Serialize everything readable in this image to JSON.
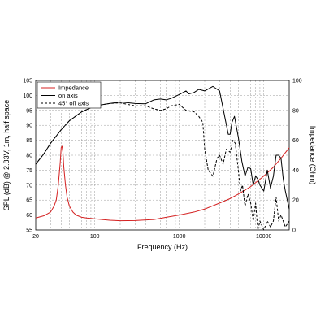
{
  "chart_data": {
    "type": "line",
    "xlabel": "Frequency (Hz)",
    "ylabel_left": "SPL (dB) @ 2.83V, 1m, half space",
    "ylabel_right": "Impedance (Ohm)",
    "x_scale": "log",
    "xlim": [
      20,
      20000
    ],
    "ylim_left": [
      55,
      105
    ],
    "ylim_right": [
      0,
      100
    ],
    "x_tick_labels": [
      "20",
      "100",
      "1000",
      "10000"
    ],
    "y_left_ticks": [
      "55",
      "60",
      "65",
      "70",
      "75",
      "80",
      "85",
      "90",
      "95",
      "100",
      "105"
    ],
    "y_right_ticks": [
      "0",
      "20",
      "40",
      "60",
      "80",
      "100"
    ],
    "grid": true,
    "legend_position": "top-left",
    "series": [
      {
        "name": "Impedance",
        "axis": "right",
        "color": "#d42020",
        "style": "solid",
        "x": [
          20,
          25,
          30,
          33,
          35,
          37,
          39,
          40,
          41,
          42,
          43,
          45,
          47,
          50,
          55,
          60,
          70,
          80,
          100,
          150,
          200,
          300,
          500,
          700,
          1000,
          1500,
          2000,
          3000,
          4000,
          5000,
          7000,
          10000,
          13000,
          16000,
          20000
        ],
        "values": [
          8,
          9.5,
          12,
          16,
          20,
          30,
          45,
          55,
          56,
          52,
          42,
          30,
          22,
          16,
          12,
          10,
          8.5,
          8,
          7.5,
          6.5,
          6.2,
          6.3,
          7,
          8.5,
          10,
          12,
          14,
          18,
          21,
          24,
          29,
          36,
          42,
          48,
          55
        ]
      },
      {
        "name": "on axis",
        "axis": "left",
        "color": "#000000",
        "style": "solid",
        "x": [
          20,
          25,
          30,
          40,
          50,
          70,
          100,
          150,
          200,
          300,
          400,
          500,
          600,
          700,
          800,
          1000,
          1200,
          1300,
          1500,
          1700,
          2000,
          2500,
          3000,
          3500,
          3800,
          4000,
          4200,
          4500,
          5000,
          5500,
          6000,
          6500,
          7000,
          7500,
          8000,
          8500,
          9000,
          10000,
          11000,
          12000,
          13000,
          14000,
          15000,
          16000,
          17000,
          18000,
          20000
        ],
        "values": [
          77,
          80.5,
          84,
          88.5,
          91.5,
          94.5,
          96.5,
          97.3,
          97.8,
          97.3,
          97.2,
          98.5,
          98.8,
          98.5,
          99,
          100.3,
          101.5,
          100.5,
          101,
          102,
          101.5,
          103,
          101.5,
          92,
          87,
          87,
          91,
          93,
          86,
          78,
          73,
          76,
          75.5,
          70,
          73,
          72,
          70,
          68,
          75,
          69,
          73,
          80,
          80,
          79,
          72,
          68,
          62
        ]
      },
      {
        "name": "45° off axis",
        "axis": "left",
        "color": "#000000",
        "style": "dashed",
        "x": [
          20,
          25,
          30,
          40,
          50,
          70,
          100,
          150,
          200,
          300,
          400,
          500,
          600,
          700,
          800,
          1000,
          1200,
          1500,
          1700,
          1900,
          2000,
          2200,
          2500,
          2800,
          3000,
          3300,
          3600,
          4000,
          4300,
          4600,
          5000,
          5300,
          5600,
          6000,
          6500,
          7000,
          7500,
          8000,
          8500,
          9000,
          10000,
          11000,
          12000,
          13000,
          14000,
          15000,
          16000,
          18000,
          20000
        ],
        "values": [
          77,
          80.5,
          84,
          88.5,
          91.5,
          94.5,
          96.5,
          97.3,
          97.5,
          96.5,
          96.5,
          95.5,
          95,
          95.5,
          96.5,
          97,
          95,
          94.5,
          93,
          91,
          82,
          75,
          73,
          79,
          80,
          77,
          82,
          81,
          85,
          84,
          75,
          68,
          70,
          63,
          67,
          64,
          58,
          64,
          55,
          58,
          55,
          58,
          56,
          58,
          66,
          58,
          60,
          56,
          58
        ]
      }
    ]
  }
}
